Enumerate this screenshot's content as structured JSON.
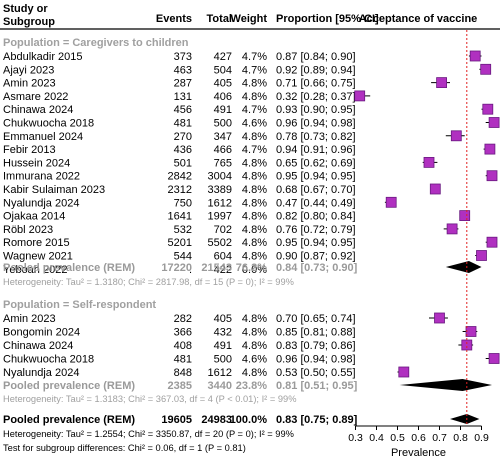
{
  "header": {
    "study_line1": "Study or",
    "study_line2": "Subgroup",
    "events": "Events",
    "total": "Total",
    "weight": "Weight",
    "proportion": "Proportion [95% CI]",
    "plot_title": "Acceptance of vaccine"
  },
  "colors": {
    "box_fill": "#b030c0",
    "box_stroke": "#6a1a80",
    "ref_line": "#e02020",
    "diamond": "#000000",
    "gray_text": "#a0a0a0",
    "pooled_gray": "#9a9a9a"
  },
  "chart_data": {
    "type": "forest",
    "xlabel": "Prevalence",
    "xlim": [
      0.3,
      0.9
    ],
    "ticks": [
      "0.3",
      "0.4",
      "0.5",
      "0.6",
      "0.7",
      "0.8",
      "0.9"
    ],
    "tick_values": [
      0.3,
      0.4,
      0.5,
      0.6,
      0.7,
      0.8,
      0.9
    ],
    "reference_line": 0.83,
    "groups": [
      {
        "label": "Population = Caregivers to children",
        "studies": [
          {
            "study": "Abdulkadir 2015",
            "events": "373",
            "total": "427",
            "weight": "4.7%",
            "ci": "0.87 [0.84; 0.90]",
            "est": 0.87,
            "lo": 0.84,
            "hi": 0.9
          },
          {
            "study": "Ajayi 2023",
            "events": "463",
            "total": "504",
            "weight": "4.7%",
            "ci": "0.92 [0.89; 0.94]",
            "est": 0.92,
            "lo": 0.89,
            "hi": 0.94
          },
          {
            "study": "Amin 2023",
            "events": "287",
            "total": "405",
            "weight": "4.8%",
            "ci": "0.71 [0.66; 0.75]",
            "est": 0.71,
            "lo": 0.66,
            "hi": 0.75
          },
          {
            "study": "Asmare 2022",
            "events": "131",
            "total": "406",
            "weight": "4.8%",
            "ci": "0.32 [0.28; 0.37]",
            "est": 0.32,
            "lo": 0.28,
            "hi": 0.37
          },
          {
            "study": "Chinawa 2024",
            "events": "456",
            "total": "491",
            "weight": "4.7%",
            "ci": "0.93 [0.90; 0.95]",
            "est": 0.93,
            "lo": 0.9,
            "hi": 0.95
          },
          {
            "study": "Chukwuocha 2018",
            "events": "481",
            "total": "500",
            "weight": "4.6%",
            "ci": "0.96 [0.94; 0.98]",
            "est": 0.96,
            "lo": 0.94,
            "hi": 0.98
          },
          {
            "study": "Emmanuel 2024",
            "events": "270",
            "total": "347",
            "weight": "4.8%",
            "ci": "0.78 [0.73; 0.82]",
            "est": 0.78,
            "lo": 0.73,
            "hi": 0.82
          },
          {
            "study": "Febir 2013",
            "events": "436",
            "total": "466",
            "weight": "4.7%",
            "ci": "0.94 [0.91; 0.96]",
            "est": 0.94,
            "lo": 0.91,
            "hi": 0.96
          },
          {
            "study": "Hussein 2024",
            "events": "501",
            "total": "765",
            "weight": "4.8%",
            "ci": "0.65 [0.62; 0.69]",
            "est": 0.65,
            "lo": 0.62,
            "hi": 0.69
          },
          {
            "study": "Immurana 2022",
            "events": "2842",
            "total": "3004",
            "weight": "4.8%",
            "ci": "0.95 [0.94; 0.95]",
            "est": 0.95,
            "lo": 0.94,
            "hi": 0.95
          },
          {
            "study": "Kabir Sulaiman 2023",
            "events": "2312",
            "total": "3389",
            "weight": "4.8%",
            "ci": "0.68 [0.67; 0.70]",
            "est": 0.68,
            "lo": 0.67,
            "hi": 0.7
          },
          {
            "study": "Nyalundja 2024",
            "events": "750",
            "total": "1612",
            "weight": "4.8%",
            "ci": "0.47 [0.44; 0.49]",
            "est": 0.47,
            "lo": 0.44,
            "hi": 0.49
          },
          {
            "study": "Ojakaa 2014",
            "events": "1641",
            "total": "1997",
            "weight": "4.8%",
            "ci": "0.82 [0.80; 0.84]",
            "est": 0.82,
            "lo": 0.8,
            "hi": 0.84
          },
          {
            "study": "Röbl 2023",
            "events": "532",
            "total": "702",
            "weight": "4.8%",
            "ci": "0.76 [0.72; 0.79]",
            "est": 0.76,
            "lo": 0.72,
            "hi": 0.79
          },
          {
            "study": "Romore 2015",
            "events": "5201",
            "total": "5502",
            "weight": "4.8%",
            "ci": "0.95 [0.94; 0.95]",
            "est": 0.95,
            "lo": 0.94,
            "hi": 0.95
          },
          {
            "study": "Wagnew 2021",
            "events": "544",
            "total": "604",
            "weight": "4.8%",
            "ci": "0.90 [0.87; 0.92]",
            "est": 0.9,
            "lo": 0.87,
            "hi": 0.92
          },
          {
            "study": "Yeboah 2022",
            "events": ".",
            "total": "422",
            "weight": "0.0%",
            "ci": "",
            "est": null,
            "lo": null,
            "hi": null
          }
        ],
        "pooled": {
          "label": "Pooled prevalence (REM)",
          "events": "17220",
          "total": "21543",
          "weight": "76.2%",
          "ci": "0.84 [0.73; 0.90]",
          "est": 0.84,
          "lo": 0.73,
          "hi": 0.9
        },
        "heterogeneity": "Heterogeneity: Tau² = 1.3180; Chi² = 2817.98, df = 15 (P = 0); I² = 99%"
      },
      {
        "label": "Population = Self-respondent",
        "studies": [
          {
            "study": "Amin 2023",
            "events": "282",
            "total": "405",
            "weight": "4.8%",
            "ci": "0.70 [0.65; 0.74]",
            "est": 0.7,
            "lo": 0.65,
            "hi": 0.74
          },
          {
            "study": "Bongomin 2024",
            "events": "366",
            "total": "432",
            "weight": "4.8%",
            "ci": "0.85 [0.81; 0.88]",
            "est": 0.85,
            "lo": 0.81,
            "hi": 0.88
          },
          {
            "study": "Chinawa 2024",
            "events": "408",
            "total": "491",
            "weight": "4.8%",
            "ci": "0.83 [0.79; 0.86]",
            "est": 0.83,
            "lo": 0.79,
            "hi": 0.86
          },
          {
            "study": "Chukwuocha 2018",
            "events": "481",
            "total": "500",
            "weight": "4.6%",
            "ci": "0.96 [0.94; 0.98]",
            "est": 0.96,
            "lo": 0.94,
            "hi": 0.98
          },
          {
            "study": "Nyalundja 2024",
            "events": "848",
            "total": "1612",
            "weight": "4.8%",
            "ci": "0.53 [0.50; 0.55]",
            "est": 0.53,
            "lo": 0.5,
            "hi": 0.55
          }
        ],
        "pooled": {
          "label": "Pooled prevalence (REM)",
          "events": "2385",
          "total": "3440",
          "weight": "23.8%",
          "ci": "0.81 [0.51; 0.95]",
          "est": 0.81,
          "lo": 0.51,
          "hi": 0.95
        },
        "heterogeneity": "Heterogeneity: Tau² = 1.3183; Chi² = 367.03, df = 4 (P < 0.01); I² = 99%"
      }
    ],
    "overall": {
      "label": "Pooled prevalence (REM)",
      "events": "19605",
      "total": "24983",
      "weight": "100.0%",
      "ci": "0.83 [0.75; 0.89]",
      "est": 0.83,
      "lo": 0.75,
      "hi": 0.89
    },
    "overall_heterogeneity": "Heterogeneity: Tau² = 1.2554; Chi² = 3350.87, df = 20 (P = 0); I² = 99%",
    "subgroup_test": "Test for subgroup differences: Chi² = 0.06, df = 1 (P = 0.81)"
  }
}
